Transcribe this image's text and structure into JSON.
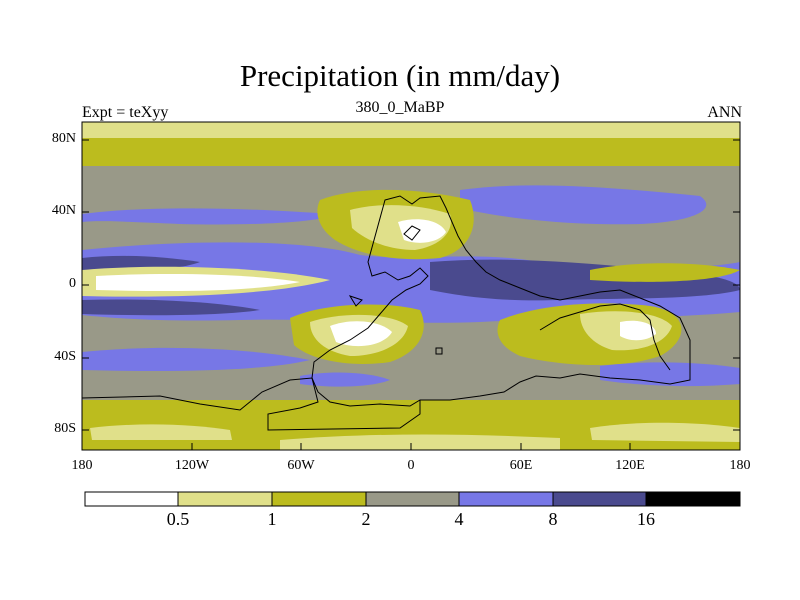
{
  "title": "Precipitation (in mm/day)",
  "subtitle_left": "Expt = teXyy",
  "subtitle_center": "380_0_MaBP",
  "subtitle_right": "ANN",
  "lat_ticks": [
    "80N",
    "40N",
    "0",
    "40S",
    "80S"
  ],
  "lon_ticks": [
    "180",
    "120W",
    "60W",
    "0",
    "60E",
    "120E",
    "180"
  ],
  "colorbar": {
    "labels": [
      "0.5",
      "1",
      "2",
      "4",
      "8",
      "16"
    ],
    "colors": [
      "#ffffff",
      "#e0e08a",
      "#bcbc1e",
      "#999988",
      "#7777e6",
      "#4a4a8e",
      "#000000"
    ]
  }
}
